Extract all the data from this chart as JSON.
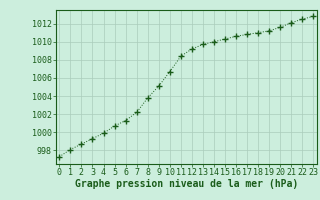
{
  "x": [
    0,
    1,
    2,
    3,
    4,
    5,
    6,
    7,
    8,
    9,
    10,
    11,
    12,
    13,
    14,
    15,
    16,
    17,
    18,
    19,
    20,
    21,
    22,
    23
  ],
  "y": [
    997.3,
    998.1,
    998.7,
    999.3,
    999.9,
    1000.7,
    1001.3,
    1002.2,
    1003.8,
    1005.1,
    1006.7,
    1008.4,
    1009.2,
    1009.7,
    1010.0,
    1010.3,
    1010.6,
    1010.8,
    1011.0,
    1011.2,
    1011.6,
    1012.1,
    1012.5,
    1012.8
  ],
  "line_color": "#1a5c1a",
  "marker": "+",
  "marker_size": 4,
  "bg_color": "#cceedd",
  "grid_color": "#aaccbb",
  "xlabel": "Graphe pression niveau de la mer (hPa)",
  "xlabel_color": "#1a5c1a",
  "xlabel_fontsize": 7,
  "tick_label_color": "#1a5c1a",
  "tick_fontsize": 6,
  "yticks": [
    998,
    1000,
    1002,
    1004,
    1006,
    1008,
    1010,
    1012
  ],
  "ylim": [
    996.5,
    1013.5
  ],
  "xlim": [
    -0.3,
    23.3
  ],
  "xticks": [
    0,
    1,
    2,
    3,
    4,
    5,
    6,
    7,
    8,
    9,
    10,
    11,
    12,
    13,
    14,
    15,
    16,
    17,
    18,
    19,
    20,
    21,
    22,
    23
  ]
}
